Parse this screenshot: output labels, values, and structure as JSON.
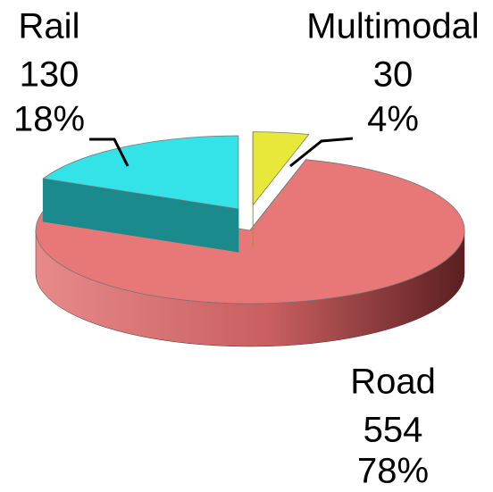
{
  "chart_data": {
    "type": "pie",
    "categories": [
      "Rail",
      "Multimodal",
      "Road"
    ],
    "values": [
      130,
      30,
      554
    ],
    "percentages": [
      {
        "value": 18,
        "label": "18%"
      },
      {
        "value": 4,
        "label": "4%"
      },
      {
        "value": 78,
        "label": "78%"
      }
    ],
    "colors": [
      "#33e3e8",
      "#e8e83a",
      "#e87878"
    ],
    "side_colors": [
      "#1a8a8c",
      "#9a9a1a",
      "#7a2f30"
    ],
    "exploded": [
      "Rail",
      "Multimodal"
    ]
  }
}
